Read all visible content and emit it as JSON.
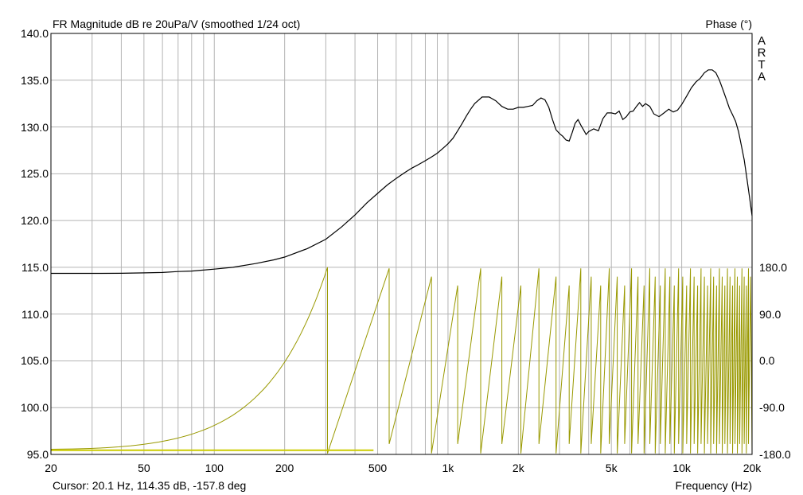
{
  "chart_data": {
    "type": "line",
    "title": "FR Magnitude dB re 20uPa/V (smoothed 1/24 oct)",
    "y2_title": "Phase (°)",
    "watermark": [
      "A",
      "R",
      "T",
      "A"
    ],
    "xlabel": "Frequency (Hz)",
    "cursor": "Cursor: 20.1 Hz, 114.35 dB, -157.8 deg",
    "x_scale": "log",
    "xlim": [
      20,
      20000
    ],
    "ylim": [
      95,
      140
    ],
    "y2lim": [
      -180,
      180
    ],
    "grid": true,
    "x_ticks": [
      {
        "value": 20,
        "label": "20"
      },
      {
        "value": 50,
        "label": "50"
      },
      {
        "value": 100,
        "label": "100"
      },
      {
        "value": 200,
        "label": "200"
      },
      {
        "value": 500,
        "label": "500"
      },
      {
        "value": 1000,
        "label": "1k"
      },
      {
        "value": 2000,
        "label": "2k"
      },
      {
        "value": 5000,
        "label": "5k"
      },
      {
        "value": 10000,
        "label": "10k"
      },
      {
        "value": 20000,
        "label": "20k"
      }
    ],
    "y_ticks": [
      "95.0",
      "100.0",
      "105.0",
      "110.0",
      "115.0",
      "120.0",
      "125.0",
      "130.0",
      "135.0",
      "140.0"
    ],
    "y2_ticks": [
      {
        "value": 180,
        "label": "180.0"
      },
      {
        "value": 90,
        "label": "90.0"
      },
      {
        "value": 0,
        "label": "0.0"
      },
      {
        "value": -90,
        "label": "-90.0"
      },
      {
        "value": -180,
        "label": "-180.0"
      }
    ],
    "series": [
      {
        "color": "#000000",
        "x": [
          20,
          30,
          40,
          50,
          60,
          70,
          80,
          100,
          120,
          150,
          180,
          200,
          250,
          300,
          350,
          400,
          450,
          500,
          550,
          600,
          650,
          700,
          750,
          800,
          850,
          900,
          950,
          1000,
          1050,
          1100,
          1150,
          1200,
          1250,
          1300,
          1400,
          1500,
          1600,
          1700,
          1800,
          1900,
          2000,
          2100,
          2200,
          2300,
          2400,
          2500,
          2600,
          2700,
          2800,
          2900,
          3000,
          3100,
          3200,
          3300,
          3400,
          3500,
          3600,
          3700,
          3800,
          3900,
          4000,
          4200,
          4400,
          4600,
          4800,
          5000,
          5200,
          5400,
          5600,
          5800,
          6000,
          6200,
          6400,
          6600,
          6800,
          7000,
          7300,
          7600,
          8000,
          8400,
          8800,
          9200,
          9600,
          10000,
          10500,
          11000,
          11500,
          12000,
          12500,
          13000,
          13500,
          14000,
          14500,
          15000,
          15500,
          16000,
          16500,
          17000,
          17500,
          18000,
          18500,
          19000,
          19500,
          20000
        ],
        "values": [
          114.35,
          114.35,
          114.36,
          114.4,
          114.45,
          114.55,
          114.6,
          114.8,
          115.0,
          115.4,
          115.8,
          116.1,
          117.0,
          118.0,
          119.3,
          120.6,
          121.9,
          122.9,
          123.8,
          124.5,
          125.1,
          125.6,
          126.0,
          126.4,
          126.8,
          127.2,
          127.7,
          128.2,
          128.8,
          129.6,
          130.4,
          131.2,
          131.9,
          132.5,
          133.2,
          133.2,
          132.8,
          132.2,
          131.9,
          131.9,
          132.1,
          132.1,
          132.2,
          132.3,
          132.8,
          133.1,
          132.9,
          132.1,
          130.8,
          129.7,
          129.3,
          129.0,
          128.6,
          128.5,
          129.4,
          130.4,
          130.8,
          130.2,
          129.7,
          129.2,
          129.5,
          129.8,
          129.6,
          130.9,
          131.5,
          131.5,
          131.4,
          131.7,
          130.8,
          131.1,
          131.6,
          131.7,
          132.2,
          132.6,
          132.2,
          132.5,
          132.2,
          131.4,
          131.1,
          131.5,
          131.9,
          131.6,
          131.8,
          132.4,
          133.3,
          134.2,
          134.8,
          135.2,
          135.8,
          136.1,
          136.1,
          135.8,
          135.0,
          134.0,
          133.0,
          132.0,
          131.3,
          130.6,
          129.5,
          128.0,
          126.5,
          124.5,
          122.5,
          120.5
        ]
      },
      {
        "color": "#999900",
        "axis": "phase",
        "wrap_markers_hz": [
          305,
          560,
          850,
          1100,
          1380,
          1700,
          2050,
          2450,
          2900,
          3300,
          3700,
          4100,
          4500,
          4900,
          5300,
          5700,
          6100,
          6500,
          6900,
          7300,
          7700,
          8100,
          8500,
          8900,
          9300,
          9700,
          10100,
          10500,
          10900,
          11300,
          11700,
          12100,
          12500,
          12900,
          13300,
          13700,
          14100,
          14500,
          14900,
          15300,
          15700,
          16100,
          16500,
          16900,
          17300,
          17700,
          18100,
          18500,
          18900,
          19300,
          19700
        ]
      }
    ]
  }
}
